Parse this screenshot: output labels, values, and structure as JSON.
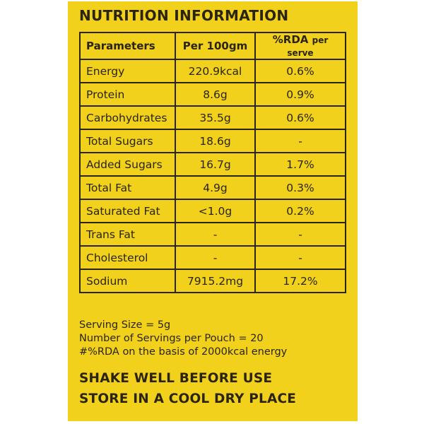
{
  "title": "NUTRITION INFORMATION",
  "table": {
    "header": [
      "Parameters",
      "Per 100gm",
      {
        "main": "%RDA",
        "sub": "per serve"
      }
    ],
    "rows": [
      [
        "Energy",
        "220.9kcal",
        "0.6%"
      ],
      [
        "Protein",
        "8.6g",
        "0.9%"
      ],
      [
        "Carbohydrates",
        "35.5g",
        "0.6%"
      ],
      [
        "Total Sugars",
        "18.6g",
        "-"
      ],
      [
        "Added Sugars",
        "16.7g",
        "1.7%"
      ],
      [
        "Total Fat",
        "4.9g",
        "0.3%"
      ],
      [
        "Saturated Fat",
        "<1.0g",
        "0.2%"
      ],
      [
        "Trans Fat",
        "-",
        "-"
      ],
      [
        "Cholesterol",
        "-",
        "-"
      ],
      [
        "Sodium",
        "7915.2mg",
        "17.2%"
      ]
    ]
  },
  "notes": [
    "Serving Size = 5g",
    "Number of Servings per Pouch = 20",
    "#%RDA on the basis of 2000kcal energy"
  ],
  "instructions": [
    "SHAKE WELL BEFORE USE",
    "STORE IN A COOL DRY PLACE"
  ]
}
